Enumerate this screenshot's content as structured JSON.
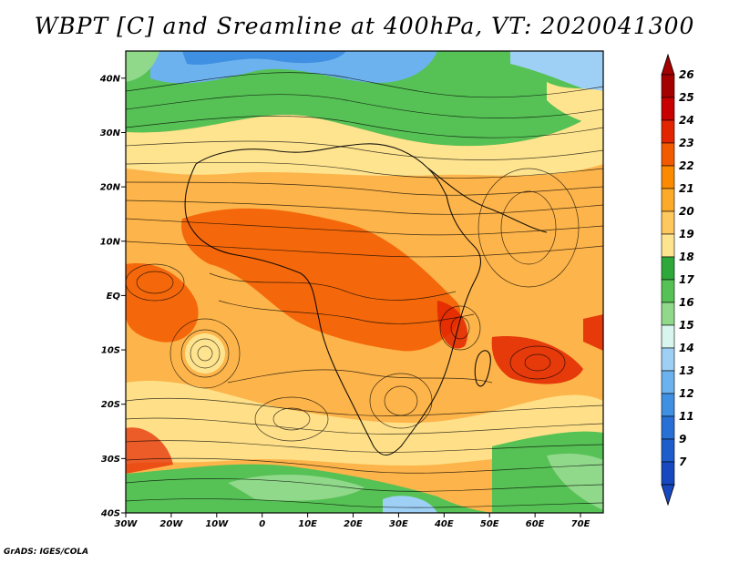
{
  "title": "WBPT [C] and Sreamline at 400hPa, VT: 2020041300",
  "credit": "GrADS: IGES/COLA",
  "map": {
    "lon_range": [
      -30,
      75
    ],
    "lat_range": [
      -40,
      45
    ],
    "lat_ticks": [
      {
        "value": 40,
        "label": "40N"
      },
      {
        "value": 30,
        "label": "30N"
      },
      {
        "value": 20,
        "label": "20N"
      },
      {
        "value": 10,
        "label": "10N"
      },
      {
        "value": 0,
        "label": "EQ"
      },
      {
        "value": -10,
        "label": "10S"
      },
      {
        "value": -20,
        "label": "20S"
      },
      {
        "value": -30,
        "label": "30S"
      },
      {
        "value": -40,
        "label": "40S"
      }
    ],
    "lon_ticks": [
      {
        "value": -30,
        "label": "30W"
      },
      {
        "value": -20,
        "label": "20W"
      },
      {
        "value": -10,
        "label": "10W"
      },
      {
        "value": 0,
        "label": "0"
      },
      {
        "value": 10,
        "label": "10E"
      },
      {
        "value": 20,
        "label": "20E"
      },
      {
        "value": 30,
        "label": "30E"
      },
      {
        "value": 40,
        "label": "40E"
      },
      {
        "value": 50,
        "label": "50E"
      },
      {
        "value": 60,
        "label": "60E"
      },
      {
        "value": 70,
        "label": "70E"
      }
    ]
  },
  "colorbar": {
    "levels": [
      "26",
      "25",
      "24",
      "23",
      "22",
      "21",
      "20",
      "19",
      "18",
      "17",
      "16",
      "15",
      "14",
      "13",
      "12",
      "11",
      "9",
      "7"
    ],
    "colors": [
      "#a50000",
      "#c80000",
      "#e22400",
      "#f25a00",
      "#fb8a00",
      "#fdaa2a",
      "#fdc85e",
      "#ffe48f",
      "#2fa83a",
      "#56c155",
      "#90d88a",
      "#d8f5ee",
      "#9ed0f5",
      "#6cb2ee",
      "#3f8fe2",
      "#2870d6",
      "#1d5ccb",
      "#1748c0"
    ]
  }
}
